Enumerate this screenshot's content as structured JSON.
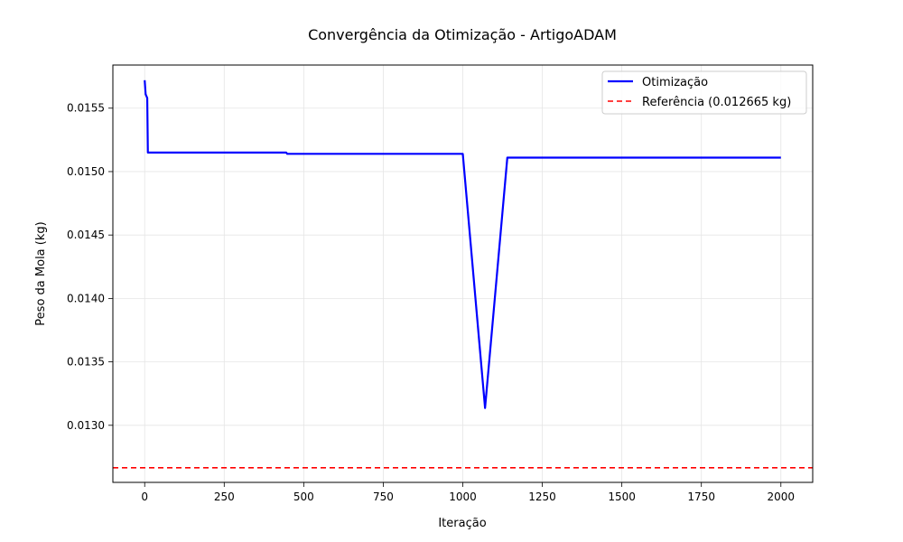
{
  "chart_data": {
    "type": "line",
    "title": "Convergência da Otimização - ArtigoADAM",
    "xlabel": "Iteração",
    "ylabel": "Peso da Mola (kg)",
    "xlim": [
      -100,
      2100
    ],
    "ylim": [
      0.01255,
      0.01584
    ],
    "xticks": [
      0,
      250,
      500,
      750,
      1000,
      1250,
      1500,
      1750,
      2000
    ],
    "xtick_labels": [
      "0",
      "250",
      "500",
      "750",
      "1000",
      "1250",
      "1500",
      "1750",
      "2000"
    ],
    "yticks": [
      0.013,
      0.0135,
      0.014,
      0.0145,
      0.015,
      0.0155
    ],
    "ytick_labels": [
      "0.0130",
      "0.0135",
      "0.0140",
      "0.0145",
      "0.0150",
      "0.0155"
    ],
    "grid": true,
    "legend_position": "top-right",
    "series": [
      {
        "name": "Otimização",
        "color": "#0000ff",
        "style": "solid",
        "x": [
          0,
          3,
          8,
          10,
          445,
          448,
          1000,
          1070,
          1140,
          2000
        ],
        "y": [
          0.01572,
          0.01561,
          0.01558,
          0.01515,
          0.01515,
          0.01514,
          0.01514,
          0.013136,
          0.01511,
          0.01511
        ]
      },
      {
        "name": "Referência (0.012665 kg)",
        "color": "#ff0000",
        "style": "dashed",
        "y_constant": 0.012665
      }
    ]
  }
}
